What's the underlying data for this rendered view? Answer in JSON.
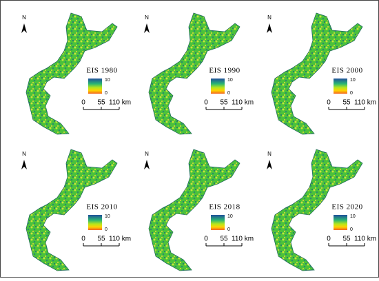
{
  "north": "N",
  "panels": [
    {
      "title": "EIS 1980",
      "legend_max": "10",
      "legend_min": "0",
      "scale": [
        "0",
        "55",
        "110 km"
      ]
    },
    {
      "title": "EIS 1990",
      "legend_max": "10",
      "legend_min": "0",
      "scale": [
        "0",
        "55",
        "110 km"
      ]
    },
    {
      "title": "EIS 2000",
      "legend_max": "10",
      "legend_min": "0",
      "scale": [
        "0",
        "55",
        "110 km"
      ]
    },
    {
      "title": "EIS 2010",
      "legend_max": "10",
      "legend_min": "0",
      "scale": [
        "0",
        "55",
        "110 km"
      ]
    },
    {
      "title": "EIS 2018",
      "legend_max": "10",
      "legend_min": "0",
      "scale": [
        "0",
        "55",
        "110 km"
      ]
    },
    {
      "title": "EIS 2020",
      "legend_max": "10",
      "legend_min": "0",
      "scale": [
        "0",
        "55",
        "110 km"
      ]
    }
  ]
}
